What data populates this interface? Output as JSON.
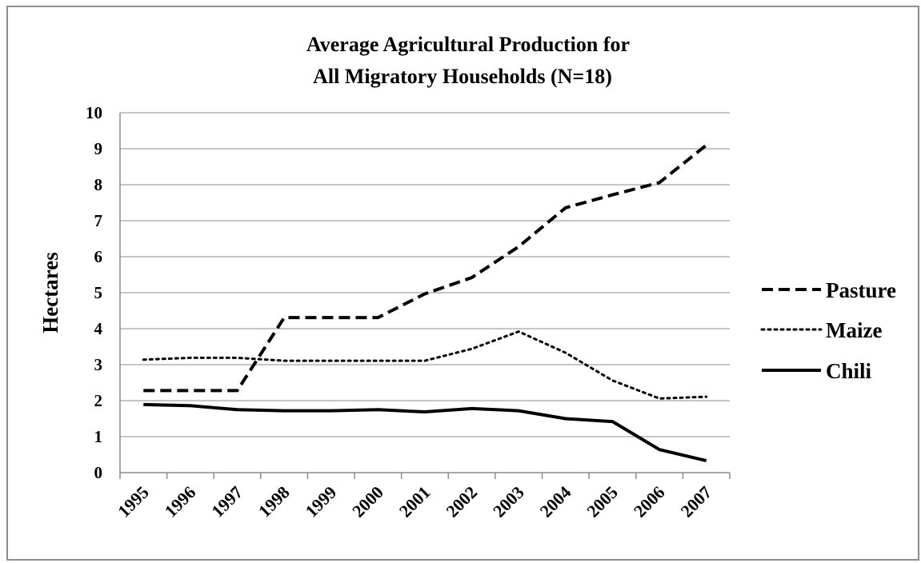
{
  "chart_data": {
    "type": "line",
    "title": "Average Agricultural Production for",
    "title_line2": "All Migratory Households (N=18)",
    "xlabel": "",
    "ylabel": "Hectares",
    "categories": [
      "1995",
      "1996",
      "1997",
      "1998",
      "1999",
      "2000",
      "2001",
      "2002",
      "2003",
      "2004",
      "2005",
      "2006",
      "2007"
    ],
    "ylim": [
      0,
      10
    ],
    "yticks": [
      "0",
      "1",
      "2",
      "3",
      "4",
      "5",
      "6",
      "7",
      "8",
      "9",
      "10"
    ],
    "grid": true,
    "legend_position": "right",
    "series": [
      {
        "name": "Pasture",
        "style": "dashed",
        "values": [
          2.28,
          2.28,
          2.28,
          4.31,
          4.31,
          4.31,
          4.97,
          5.42,
          6.28,
          7.36,
          7.72,
          8.06,
          9.1
        ]
      },
      {
        "name": "Maize",
        "style": "dotted",
        "values": [
          3.14,
          3.19,
          3.19,
          3.11,
          3.11,
          3.11,
          3.11,
          3.44,
          3.92,
          3.33,
          2.56,
          2.06,
          2.11
        ]
      },
      {
        "name": "Chili",
        "style": "solid",
        "values": [
          1.89,
          1.86,
          1.75,
          1.72,
          1.72,
          1.75,
          1.69,
          1.78,
          1.72,
          1.5,
          1.42,
          0.64,
          0.33
        ]
      }
    ],
    "colors": {
      "line": "#000000",
      "grid": "#8c8c8c",
      "frame": "#8c8c8c"
    }
  }
}
